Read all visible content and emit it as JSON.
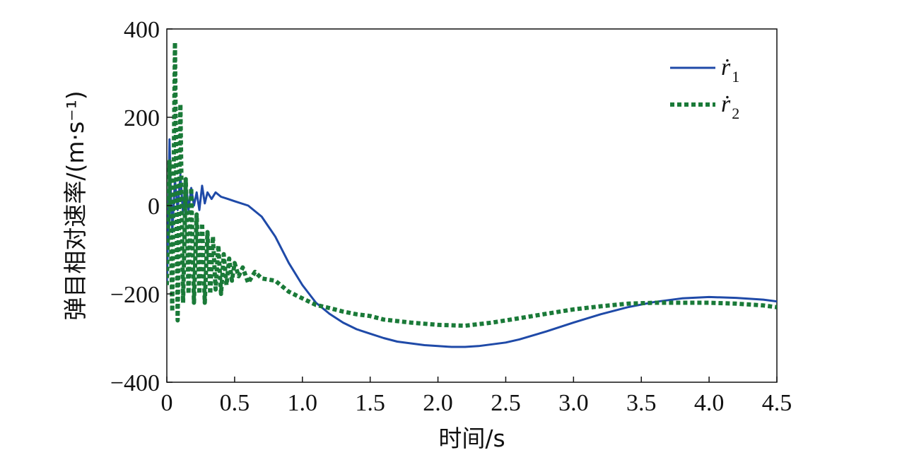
{
  "chart_data": {
    "type": "line",
    "xlabel": "时间/s",
    "ylabel": "弹目相对速率/(m·s⁻¹)",
    "xlim": [
      0,
      4.5
    ],
    "ylim": [
      -400,
      400
    ],
    "x_ticks": [
      0,
      0.5,
      1.0,
      1.5,
      2.0,
      2.5,
      3.0,
      3.5,
      4.0,
      4.5
    ],
    "x_tick_labels": [
      "0",
      "0.5",
      "1.0",
      "1.5",
      "2.0",
      "2.5",
      "3.0",
      "3.5",
      "4.0",
      "4.5"
    ],
    "y_ticks": [
      -400,
      -200,
      0,
      200,
      400
    ],
    "y_tick_labels": [
      "−400",
      "−200",
      "0",
      "200",
      "400"
    ],
    "grid": false,
    "legend_position": "top-right",
    "series": [
      {
        "name": "ṙ1",
        "legend_base": "ṙ",
        "legend_sub": "1",
        "color": "#1f4aa8",
        "style": "solid",
        "x": [
          0,
          0.01,
          0.02,
          0.03,
          0.04,
          0.06,
          0.08,
          0.1,
          0.12,
          0.14,
          0.16,
          0.18,
          0.2,
          0.22,
          0.24,
          0.26,
          0.28,
          0.3,
          0.33,
          0.36,
          0.4,
          0.45,
          0.5,
          0.6,
          0.7,
          0.8,
          0.9,
          1.0,
          1.1,
          1.2,
          1.3,
          1.4,
          1.5,
          1.6,
          1.7,
          1.8,
          1.9,
          2.0,
          2.1,
          2.2,
          2.3,
          2.4,
          2.5,
          2.6,
          2.8,
          3.0,
          3.2,
          3.4,
          3.6,
          3.8,
          4.0,
          4.2,
          4.4,
          4.5
        ],
        "y": [
          -180,
          -50,
          150,
          20,
          -60,
          60,
          -10,
          70,
          -20,
          60,
          -10,
          40,
          0,
          30,
          -10,
          45,
          5,
          30,
          15,
          30,
          20,
          15,
          10,
          0,
          -25,
          -70,
          -130,
          -180,
          -220,
          -245,
          -265,
          -280,
          -290,
          -300,
          -308,
          -312,
          -316,
          -318,
          -320,
          -320,
          -318,
          -314,
          -310,
          -303,
          -285,
          -265,
          -246,
          -230,
          -218,
          -210,
          -207,
          -209,
          -213,
          -217
        ]
      },
      {
        "name": "ṙ2",
        "legend_base": "ṙ",
        "legend_sub": "2",
        "color": "#1a7a38",
        "style": "dotted",
        "x": [
          0,
          0.02,
          0.04,
          0.06,
          0.08,
          0.1,
          0.12,
          0.14,
          0.16,
          0.18,
          0.2,
          0.22,
          0.24,
          0.26,
          0.28,
          0.3,
          0.32,
          0.34,
          0.36,
          0.38,
          0.4,
          0.42,
          0.44,
          0.46,
          0.48,
          0.5,
          0.53,
          0.56,
          0.6,
          0.65,
          0.7,
          0.8,
          0.9,
          1.0,
          1.1,
          1.2,
          1.3,
          1.4,
          1.5,
          1.6,
          1.8,
          2.0,
          2.2,
          2.4,
          2.6,
          2.8,
          3.0,
          3.2,
          3.4,
          3.6,
          3.8,
          4.0,
          4.2,
          4.4,
          4.5
        ],
        "y": [
          -180,
          100,
          -240,
          370,
          -260,
          230,
          -220,
          60,
          -200,
          40,
          -220,
          -20,
          -200,
          -40,
          -220,
          -60,
          -200,
          -70,
          -190,
          -90,
          -200,
          -110,
          -180,
          -120,
          -170,
          -130,
          -160,
          -140,
          -175,
          -150,
          -165,
          -170,
          -195,
          -210,
          -225,
          -232,
          -240,
          -246,
          -250,
          -258,
          -265,
          -270,
          -272,
          -265,
          -255,
          -245,
          -235,
          -228,
          -222,
          -220,
          -220,
          -220,
          -222,
          -226,
          -230
        ]
      }
    ]
  }
}
